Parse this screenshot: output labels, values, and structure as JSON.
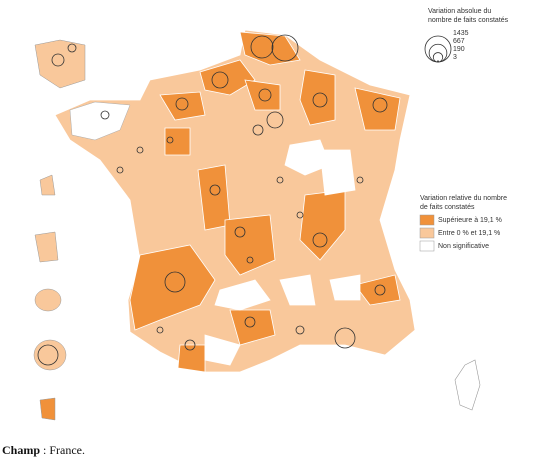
{
  "size_legend": {
    "title": [
      "Variation absolue du",
      "nombre de faits constatés"
    ],
    "values": [
      1435,
      667,
      190,
      3
    ]
  },
  "color_legend": {
    "title": [
      "Variation relative du nombre",
      "de faits constatés"
    ],
    "items": [
      {
        "label": "Supérieure à 19,1 %",
        "color": "#f0913a"
      },
      {
        "label": "Entre 0 % et 19,1 %",
        "color": "#f9c89b"
      },
      {
        "label": "Non significative",
        "color": "#ffffff"
      }
    ]
  },
  "champ": {
    "label": "Champ",
    "text": ": France."
  }
}
